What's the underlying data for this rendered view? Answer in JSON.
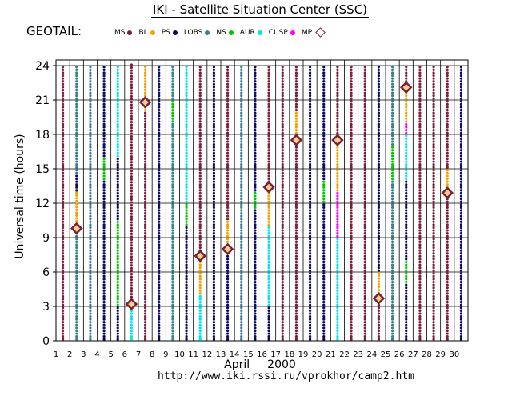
{
  "title": "IKI - Satellite Situation Center (SSC)",
  "mission": "GEOTAIL:",
  "legend": [
    {
      "label": "MS",
      "color": "#7a1f3a"
    },
    {
      "label": "BL",
      "color": "#f5a200"
    },
    {
      "label": "PS",
      "color": "#0a0a5e"
    },
    {
      "label": "LOBS",
      "color": "#3a7f8f"
    },
    {
      "label": "NS",
      "color": "#00c800"
    },
    {
      "label": "AUR",
      "color": "#00e5ee"
    },
    {
      "label": "CUSP",
      "color": "#ff00ff"
    },
    {
      "label": "MP",
      "color": "#7a1f3a"
    }
  ],
  "footer": {
    "month": "April",
    "year": "2000",
    "url": "http://www.iki.rssi.ru/vprokhor/camp2.htm"
  },
  "chart_data": {
    "type": "scatter",
    "ylabel": "Universal time (hours)",
    "xlabel": "",
    "xlim": [
      1,
      31
    ],
    "ylim": [
      0,
      24
    ],
    "grid": true,
    "x_ticks": [
      "1",
      "2",
      "3",
      "4",
      "5",
      "6",
      "7",
      "8",
      "9",
      "10",
      "11",
      "12",
      "13",
      "14",
      "15",
      "16",
      "17",
      "18",
      "19",
      "20",
      "21",
      "22",
      "23",
      "24",
      "25",
      "26",
      "27",
      "28",
      "29",
      "30"
    ],
    "y_ticks": [
      "0",
      "3",
      "6",
      "9",
      "12",
      "15",
      "18",
      "21",
      "24"
    ],
    "colors": {
      "MS": "#7a1f3a",
      "BL": "#f5a200",
      "PS": "#0a0a5e",
      "LOBS": "#3a7f8f",
      "NS": "#00c800",
      "AUR": "#00e5ee",
      "CUSP": "#ff00ff"
    },
    "columns": [
      {
        "x": 1.5,
        "segments": [
          [
            0,
            24,
            "MS"
          ]
        ]
      },
      {
        "x": 2.5,
        "segments": [
          [
            0,
            9.8,
            "LOBS"
          ],
          [
            9.8,
            13,
            "BL"
          ],
          [
            13,
            14.5,
            "PS"
          ],
          [
            14.5,
            24,
            "LOBS"
          ]
        ]
      },
      {
        "x": 3.5,
        "segments": [
          [
            0,
            24,
            "LOBS"
          ]
        ]
      },
      {
        "x": 4.5,
        "segments": [
          [
            0,
            14,
            "PS"
          ],
          [
            14,
            16,
            "NS"
          ],
          [
            16,
            24,
            "PS"
          ]
        ]
      },
      {
        "x": 5.5,
        "segments": [
          [
            0,
            3,
            "PS"
          ],
          [
            3,
            10.5,
            "NS"
          ],
          [
            10.5,
            16,
            "PS"
          ],
          [
            16,
            24,
            "AUR"
          ]
        ]
      },
      {
        "x": 6.5,
        "segments": [
          [
            0,
            3.2,
            "AUR"
          ],
          [
            3.2,
            24,
            "MS"
          ]
        ]
      },
      {
        "x": 7.5,
        "segments": [
          [
            0,
            2.5,
            "MS"
          ],
          [
            2.5,
            20,
            "MS"
          ],
          [
            20,
            24,
            "BL"
          ]
        ]
      },
      {
        "x": 8.5,
        "segments": [
          [
            0,
            24,
            "PS"
          ]
        ]
      },
      {
        "x": 9.5,
        "segments": [
          [
            0,
            19,
            "LOBS"
          ],
          [
            19,
            21,
            "NS"
          ],
          [
            21,
            24,
            "LOBS"
          ]
        ]
      },
      {
        "x": 10.5,
        "segments": [
          [
            0,
            10,
            "PS"
          ],
          [
            10,
            12,
            "NS"
          ],
          [
            12,
            24,
            "AUR"
          ]
        ]
      },
      {
        "x": 11.5,
        "segments": [
          [
            0,
            4,
            "AUR"
          ],
          [
            4,
            7,
            "BL"
          ],
          [
            7,
            24,
            "MS"
          ]
        ]
      },
      {
        "x": 12.5,
        "segments": [
          [
            0,
            24,
            "PS"
          ]
        ]
      },
      {
        "x": 13.5,
        "segments": [
          [
            0,
            8,
            "PS"
          ],
          [
            8,
            10.5,
            "BL"
          ],
          [
            10.5,
            24,
            "MS"
          ]
        ]
      },
      {
        "x": 14.5,
        "segments": [
          [
            0,
            24,
            "LOBS"
          ]
        ]
      },
      {
        "x": 15.5,
        "segments": [
          [
            0,
            11.5,
            "PS"
          ],
          [
            11.5,
            13,
            "NS"
          ],
          [
            13,
            24,
            "PS"
          ]
        ]
      },
      {
        "x": 16.5,
        "segments": [
          [
            0,
            3,
            "PS"
          ],
          [
            3,
            10,
            "AUR"
          ],
          [
            10,
            13.5,
            "BL"
          ],
          [
            13.5,
            24,
            "MS"
          ]
        ]
      },
      {
        "x": 17.5,
        "segments": [
          [
            0,
            24,
            "MS"
          ]
        ]
      },
      {
        "x": 18.5,
        "segments": [
          [
            0,
            17.5,
            "MS"
          ],
          [
            17.5,
            20,
            "BL"
          ],
          [
            20,
            24,
            "MS"
          ]
        ]
      },
      {
        "x": 19.5,
        "segments": [
          [
            0,
            24,
            "PS"
          ]
        ]
      },
      {
        "x": 20.5,
        "segments": [
          [
            0,
            12,
            "PS"
          ],
          [
            12,
            14,
            "NS"
          ],
          [
            14,
            24,
            "PS"
          ]
        ]
      },
      {
        "x": 21.5,
        "segments": [
          [
            0,
            9,
            "AUR"
          ],
          [
            9,
            13,
            "CUSP"
          ],
          [
            13,
            17.5,
            "BL"
          ],
          [
            17.5,
            24,
            "MS"
          ]
        ]
      },
      {
        "x": 22.5,
        "segments": [
          [
            0,
            24,
            "MS"
          ]
        ]
      },
      {
        "x": 23.5,
        "segments": [
          [
            0,
            24,
            "MS"
          ]
        ]
      },
      {
        "x": 24.5,
        "segments": [
          [
            0,
            3.8,
            "MS"
          ],
          [
            3.8,
            6,
            "BL"
          ],
          [
            6,
            24,
            "PS"
          ]
        ]
      },
      {
        "x": 25.5,
        "segments": [
          [
            0,
            14,
            "LOBS"
          ],
          [
            14,
            17,
            "NS"
          ],
          [
            17,
            24,
            "LOBS"
          ]
        ]
      },
      {
        "x": 26.5,
        "segments": [
          [
            0,
            5,
            "PS"
          ],
          [
            5,
            7,
            "NS"
          ],
          [
            7,
            14,
            "PS"
          ],
          [
            14,
            18,
            "AUR"
          ],
          [
            18,
            19,
            "CUSP"
          ],
          [
            19,
            22,
            "BL"
          ],
          [
            22,
            24,
            "MS"
          ]
        ]
      },
      {
        "x": 27.5,
        "segments": [
          [
            0,
            24,
            "MS"
          ]
        ]
      },
      {
        "x": 28.5,
        "segments": [
          [
            0,
            24,
            "MS"
          ]
        ]
      },
      {
        "x": 29.5,
        "segments": [
          [
            0,
            13,
            "MS"
          ],
          [
            13,
            15,
            "BL"
          ],
          [
            15,
            24,
            "MS"
          ]
        ]
      },
      {
        "x": 30.5,
        "segments": [
          [
            0,
            24,
            "PS"
          ]
        ]
      }
    ],
    "mp_crossings": [
      {
        "x": 2.5,
        "y": 9.8
      },
      {
        "x": 6.5,
        "y": 3.2
      },
      {
        "x": 7.5,
        "y": 20.8
      },
      {
        "x": 11.5,
        "y": 7.4
      },
      {
        "x": 13.5,
        "y": 8.0
      },
      {
        "x": 16.5,
        "y": 13.4
      },
      {
        "x": 18.5,
        "y": 17.5
      },
      {
        "x": 21.5,
        "y": 17.5
      },
      {
        "x": 24.5,
        "y": 3.7
      },
      {
        "x": 26.5,
        "y": 22.1
      },
      {
        "x": 29.5,
        "y": 12.9
      }
    ]
  }
}
